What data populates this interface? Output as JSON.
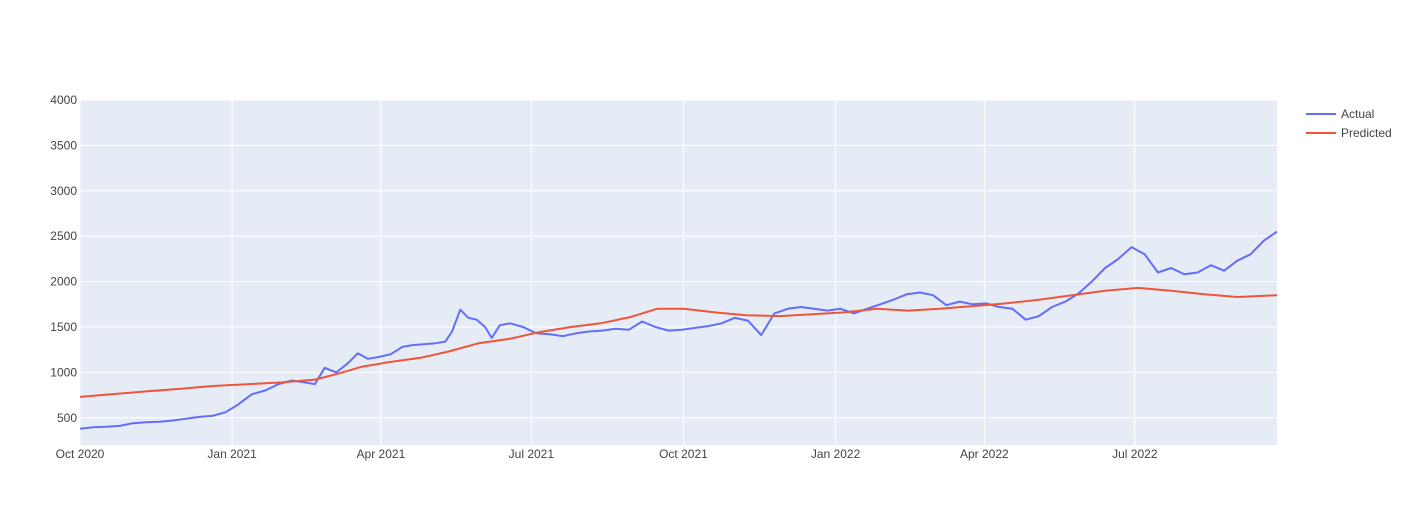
{
  "chart_data": {
    "type": "line",
    "title": "",
    "xlabel": "",
    "ylabel": "",
    "xlim": [
      "2020-10-01",
      "2022-09-25"
    ],
    "ylim": [
      200,
      4000
    ],
    "grid": true,
    "legend_position": "top-right",
    "plot_background": "#e5ecf6",
    "x_tick_labels": [
      {
        "date": "2020-10-01",
        "label": "Oct 2020"
      },
      {
        "date": "2021-01-01",
        "label": "Jan 2021"
      },
      {
        "date": "2021-04-01",
        "label": "Apr 2021"
      },
      {
        "date": "2021-07-01",
        "label": "Jul 2021"
      },
      {
        "date": "2021-10-01",
        "label": "Oct 2021"
      },
      {
        "date": "2022-01-01",
        "label": "Jan 2022"
      },
      {
        "date": "2022-04-01",
        "label": "Apr 2022"
      },
      {
        "date": "2022-07-01",
        "label": "Jul 2022"
      }
    ],
    "y_tick_labels": [
      "500",
      "1000",
      "1500",
      "2000",
      "2500",
      "3000",
      "3500",
      "4000"
    ],
    "y_ticks": [
      500,
      1000,
      1500,
      2000,
      2500,
      3000,
      3500,
      4000
    ],
    "series": [
      {
        "name": "Actual",
        "color": "#636efa",
        "points": [
          [
            "2020-10-01",
            380
          ],
          [
            "2020-10-09",
            395
          ],
          [
            "2020-10-17",
            400
          ],
          [
            "2020-10-25",
            410
          ],
          [
            "2020-11-02",
            440
          ],
          [
            "2020-11-10",
            450
          ],
          [
            "2020-11-18",
            455
          ],
          [
            "2020-11-26",
            470
          ],
          [
            "2020-12-04",
            490
          ],
          [
            "2020-12-12",
            510
          ],
          [
            "2020-12-20",
            520
          ],
          [
            "2020-12-28",
            560
          ],
          [
            "2021-01-05",
            650
          ],
          [
            "2021-01-13",
            760
          ],
          [
            "2021-01-21",
            800
          ],
          [
            "2021-01-29",
            870
          ],
          [
            "2021-02-06",
            910
          ],
          [
            "2021-02-14",
            890
          ],
          [
            "2021-02-20",
            870
          ],
          [
            "2021-02-26",
            1050
          ],
          [
            "2021-03-05",
            1000
          ],
          [
            "2021-03-12",
            1100
          ],
          [
            "2021-03-18",
            1210
          ],
          [
            "2021-03-24",
            1150
          ],
          [
            "2021-03-31",
            1170
          ],
          [
            "2021-04-07",
            1200
          ],
          [
            "2021-04-14",
            1280
          ],
          [
            "2021-04-20",
            1300
          ],
          [
            "2021-04-27",
            1310
          ],
          [
            "2021-05-04",
            1320
          ],
          [
            "2021-05-10",
            1340
          ],
          [
            "2021-05-14",
            1450
          ],
          [
            "2021-05-19",
            1690
          ],
          [
            "2021-05-24",
            1600
          ],
          [
            "2021-05-29",
            1580
          ],
          [
            "2021-06-03",
            1500
          ],
          [
            "2021-06-07",
            1380
          ],
          [
            "2021-06-12",
            1520
          ],
          [
            "2021-06-18",
            1540
          ],
          [
            "2021-06-26",
            1500
          ],
          [
            "2021-07-04",
            1430
          ],
          [
            "2021-07-12",
            1420
          ],
          [
            "2021-07-20",
            1400
          ],
          [
            "2021-07-28",
            1430
          ],
          [
            "2021-08-05",
            1450
          ],
          [
            "2021-08-13",
            1460
          ],
          [
            "2021-08-21",
            1480
          ],
          [
            "2021-08-29",
            1470
          ],
          [
            "2021-09-06",
            1560
          ],
          [
            "2021-09-14",
            1500
          ],
          [
            "2021-09-22",
            1460
          ],
          [
            "2021-09-30",
            1470
          ],
          [
            "2021-10-08",
            1490
          ],
          [
            "2021-10-16",
            1510
          ],
          [
            "2021-10-24",
            1540
          ],
          [
            "2021-11-01",
            1600
          ],
          [
            "2021-11-09",
            1570
          ],
          [
            "2021-11-17",
            1410
          ],
          [
            "2021-11-25",
            1650
          ],
          [
            "2021-12-03",
            1700
          ],
          [
            "2021-12-11",
            1720
          ],
          [
            "2021-12-19",
            1700
          ],
          [
            "2021-12-27",
            1680
          ],
          [
            "2022-01-04",
            1700
          ],
          [
            "2022-01-12",
            1650
          ],
          [
            "2022-01-20",
            1700
          ],
          [
            "2022-01-28",
            1750
          ],
          [
            "2022-02-05",
            1800
          ],
          [
            "2022-02-13",
            1860
          ],
          [
            "2022-02-21",
            1880
          ],
          [
            "2022-03-01",
            1850
          ],
          [
            "2022-03-09",
            1740
          ],
          [
            "2022-03-17",
            1780
          ],
          [
            "2022-03-25",
            1750
          ],
          [
            "2022-04-02",
            1760
          ],
          [
            "2022-04-10",
            1720
          ],
          [
            "2022-04-18",
            1700
          ],
          [
            "2022-04-26",
            1580
          ],
          [
            "2022-05-04",
            1620
          ],
          [
            "2022-05-12",
            1720
          ],
          [
            "2022-05-20",
            1780
          ],
          [
            "2022-05-28",
            1870
          ],
          [
            "2022-06-05",
            2000
          ],
          [
            "2022-06-13",
            2150
          ],
          [
            "2022-06-21",
            2250
          ],
          [
            "2022-06-29",
            2380
          ],
          [
            "2022-07-07",
            2300
          ],
          [
            "2022-07-15",
            2100
          ],
          [
            "2022-07-23",
            2150
          ],
          [
            "2022-07-31",
            2080
          ],
          [
            "2022-08-08",
            2100
          ],
          [
            "2022-08-16",
            2180
          ],
          [
            "2022-08-24",
            2120
          ],
          [
            "2022-09-01",
            2230
          ],
          [
            "2022-09-09",
            2300
          ],
          [
            "2022-09-17",
            2450
          ],
          [
            "2022-09-25",
            2550
          ]
        ]
      },
      {
        "name": "Predicted",
        "color": "#ef553b",
        "points": [
          [
            "2020-10-01",
            730
          ],
          [
            "2020-10-20",
            760
          ],
          [
            "2020-11-10",
            790
          ],
          [
            "2020-12-01",
            820
          ],
          [
            "2020-12-20",
            850
          ],
          [
            "2021-01-10",
            870
          ],
          [
            "2021-01-31",
            890
          ],
          [
            "2021-02-20",
            920
          ],
          [
            "2021-03-05",
            980
          ],
          [
            "2021-03-20",
            1060
          ],
          [
            "2021-04-05",
            1110
          ],
          [
            "2021-04-25",
            1160
          ],
          [
            "2021-05-12",
            1230
          ],
          [
            "2021-05-30",
            1320
          ],
          [
            "2021-06-18",
            1370
          ],
          [
            "2021-07-05",
            1440
          ],
          [
            "2021-07-25",
            1500
          ],
          [
            "2021-08-12",
            1540
          ],
          [
            "2021-08-30",
            1610
          ],
          [
            "2021-09-15",
            1700
          ],
          [
            "2021-10-01",
            1700
          ],
          [
            "2021-10-20",
            1660
          ],
          [
            "2021-11-08",
            1630
          ],
          [
            "2021-11-28",
            1620
          ],
          [
            "2021-12-18",
            1640
          ],
          [
            "2022-01-06",
            1660
          ],
          [
            "2022-01-26",
            1700
          ],
          [
            "2022-02-14",
            1680
          ],
          [
            "2022-03-05",
            1700
          ],
          [
            "2022-03-25",
            1730
          ],
          [
            "2022-04-14",
            1760
          ],
          [
            "2022-05-04",
            1800
          ],
          [
            "2022-05-24",
            1850
          ],
          [
            "2022-06-13",
            1900
          ],
          [
            "2022-07-03",
            1930
          ],
          [
            "2022-07-23",
            1900
          ],
          [
            "2022-08-12",
            1860
          ],
          [
            "2022-09-01",
            1830
          ],
          [
            "2022-09-25",
            1850
          ]
        ]
      }
    ]
  },
  "legend": {
    "items": [
      {
        "label": "Actual",
        "color": "#636efa"
      },
      {
        "label": "Predicted",
        "color": "#ef553b"
      }
    ]
  }
}
